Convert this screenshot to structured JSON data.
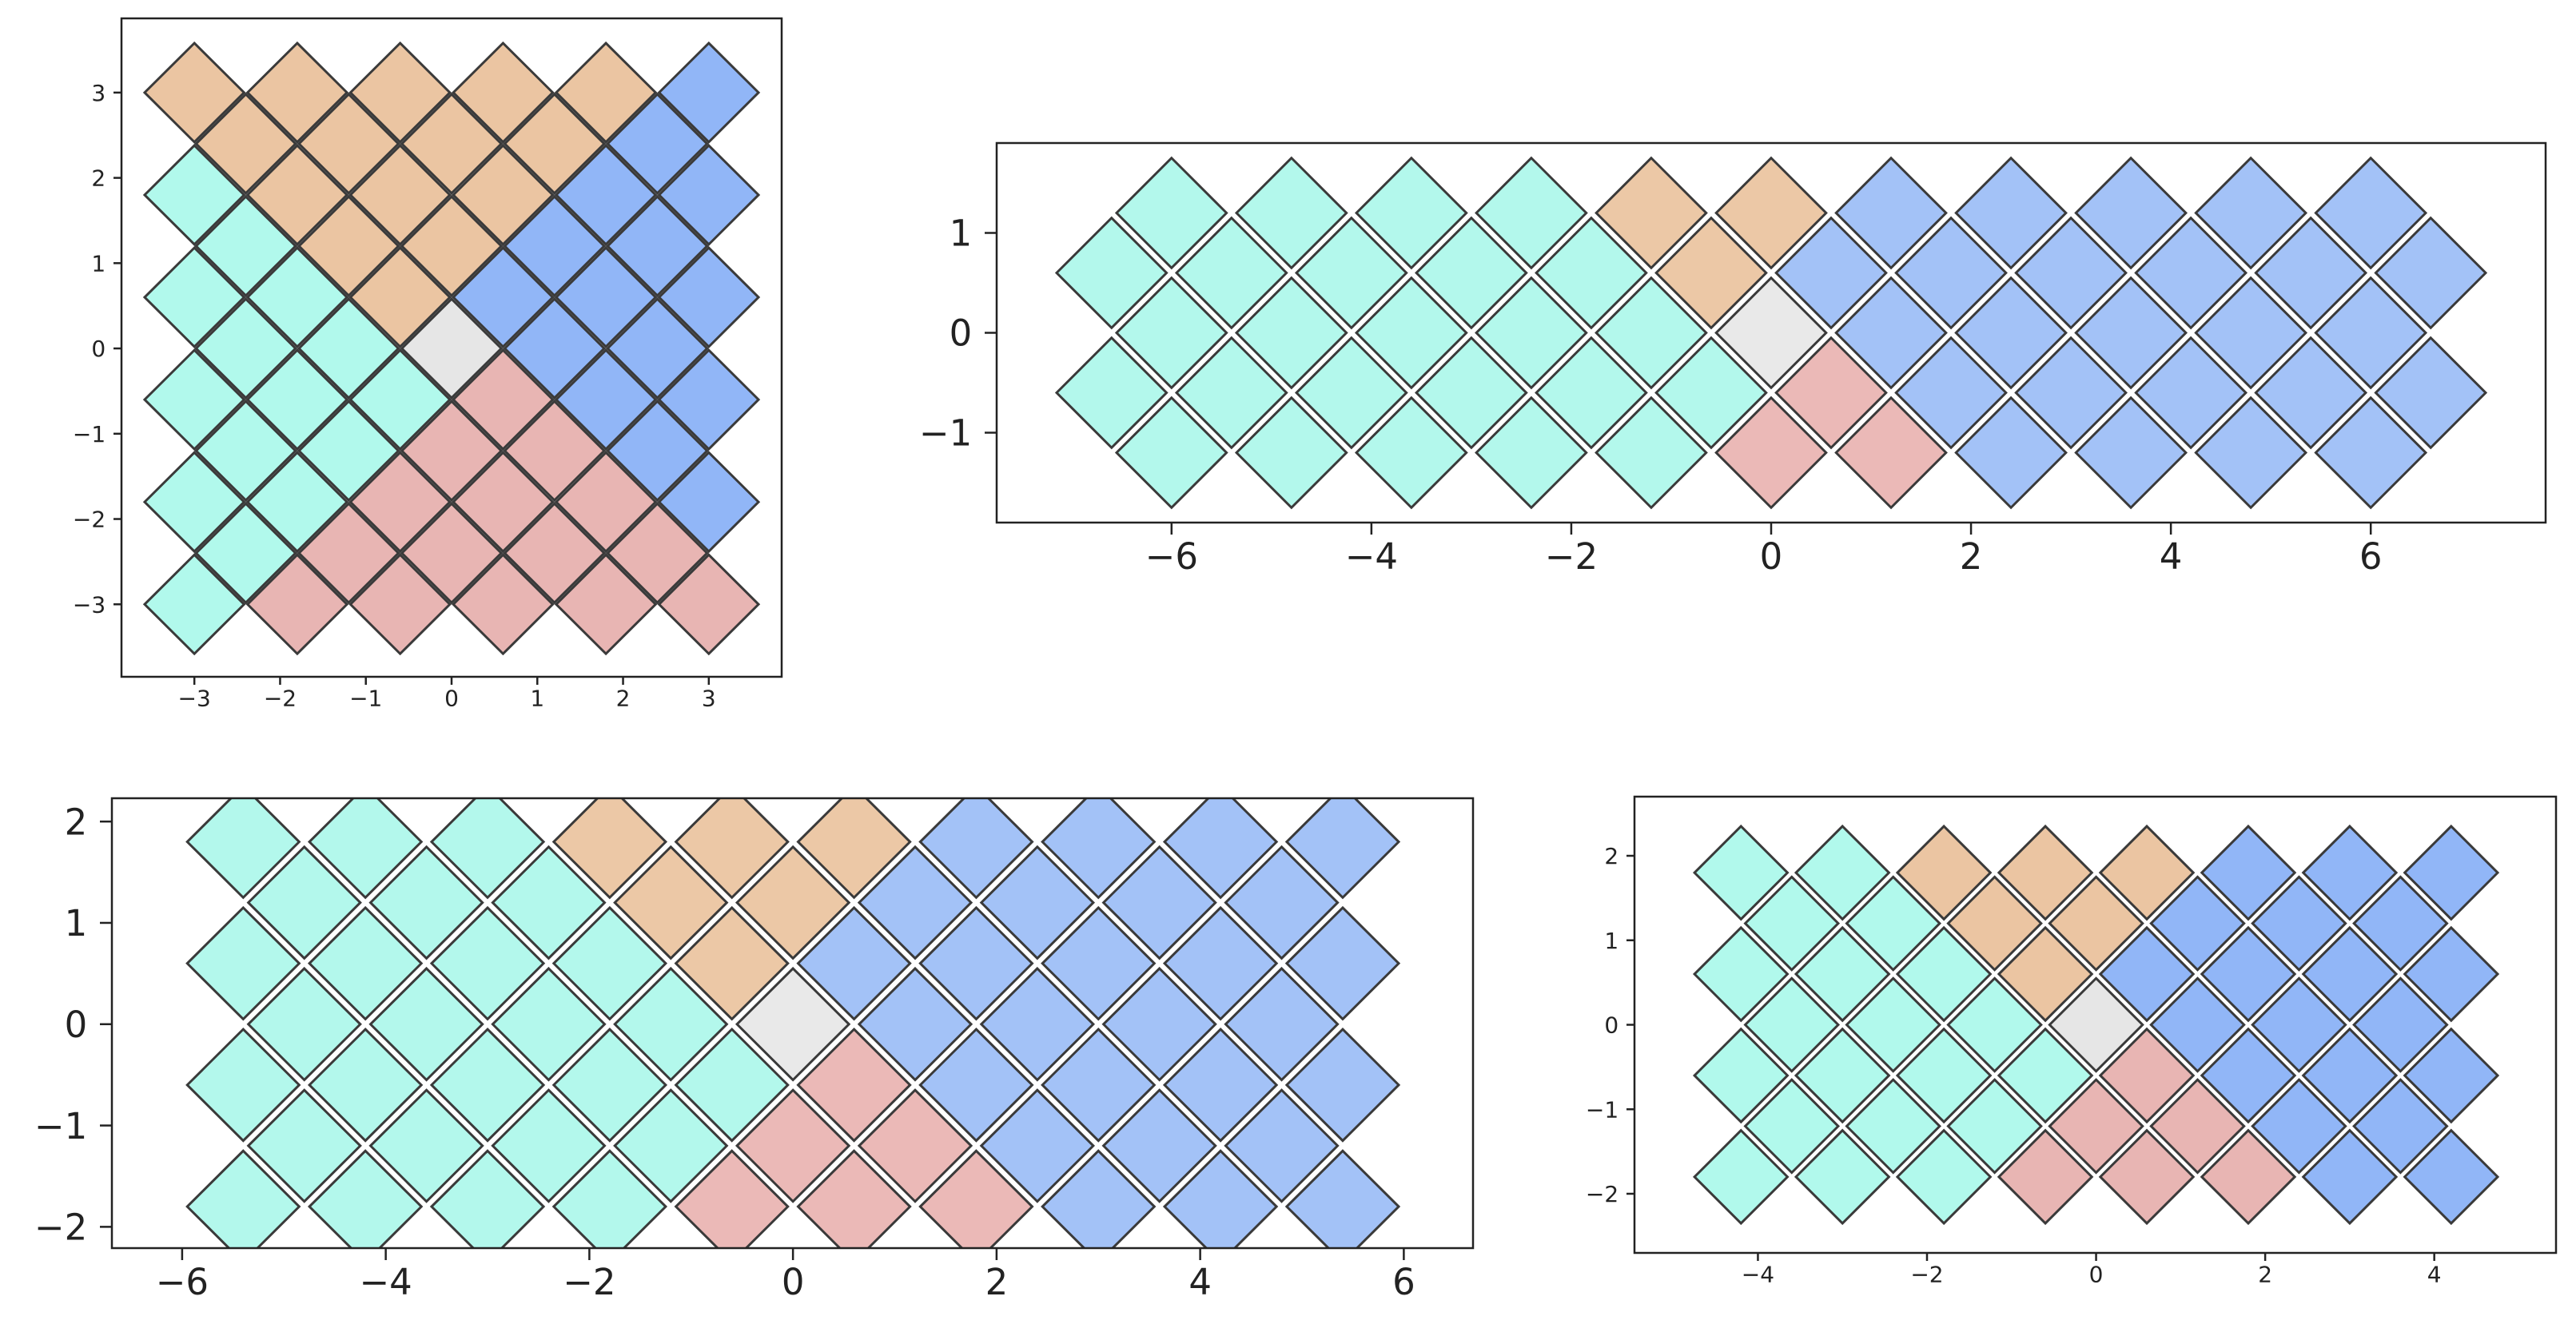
{
  "chart_data": [
    {
      "type": "scatter",
      "marker": "diamond",
      "marker_size": 0.58,
      "xlim": [
        -3.85,
        3.85
      ],
      "ylim": [
        -3.85,
        3.87
      ],
      "xticks": [
        {
          "value": -3,
          "label": "−3"
        },
        {
          "value": -2,
          "label": "−2"
        },
        {
          "value": -1,
          "label": "−1"
        },
        0,
        1,
        2,
        3
      ],
      "yticks": [
        {
          "value": -3,
          "label": "−3"
        },
        {
          "value": -2,
          "label": "−2"
        },
        {
          "value": -1,
          "label": "−1"
        },
        0,
        1,
        2,
        3
      ],
      "series": [
        {
          "color": "#ebc5a2",
          "x": [
            -3,
            -1.8,
            -0.6,
            0.6,
            1.8,
            -2.4,
            -1.2,
            0,
            1.2,
            -1.8,
            -0.6,
            0.6,
            -1.2,
            0,
            -0.6
          ],
          "values": [
            3,
            3,
            3,
            3,
            3,
            2.4,
            2.4,
            2.4,
            2.4,
            1.8,
            1.8,
            1.8,
            1.2,
            1.2,
            0.6
          ]
        },
        {
          "color": "#91b6f7",
          "x": [
            3,
            2.4,
            1.8,
            3,
            1.2,
            2.4,
            0.6,
            1.8,
            3,
            1.2,
            2.4,
            1.8,
            3,
            2.4,
            3
          ],
          "values": [
            3,
            2.4,
            1.8,
            1.8,
            1.2,
            1.2,
            0.6,
            0.6,
            0.6,
            0,
            0,
            -0.6,
            -0.6,
            -1.2,
            -1.8
          ]
        },
        {
          "color": "#e8b5b3",
          "x": [
            0.6,
            0,
            1.2,
            -0.6,
            0.6,
            1.8,
            -1.2,
            0,
            1.2,
            2.4,
            -1.8,
            -0.6,
            0.6,
            1.8,
            3
          ],
          "values": [
            -0.6,
            -1.2,
            -1.2,
            -1.8,
            -1.8,
            -1.8,
            -2.4,
            -2.4,
            -2.4,
            -2.4,
            -3,
            -3,
            -3,
            -3,
            -3
          ]
        },
        {
          "color": "#b1f9ec",
          "x": [
            -3,
            -2.4,
            -3,
            -1.8,
            -2.4,
            -1.2,
            -3,
            -1.8,
            -0.6,
            -2.4,
            -1.2,
            -3,
            -1.8,
            -2.4,
            -3
          ],
          "values": [
            1.8,
            1.2,
            0.6,
            0.6,
            0,
            0,
            -0.6,
            -0.6,
            -0.6,
            -1.2,
            -1.2,
            -1.8,
            -1.8,
            -2.4,
            -3
          ]
        },
        {
          "color": "#e6e6e6",
          "x": [
            0
          ],
          "values": [
            0
          ]
        }
      ]
    },
    {
      "type": "scatter",
      "marker": "diamond",
      "marker_size": 0.55,
      "xlim": [
        -7.75,
        7.75
      ],
      "ylim": [
        -1.9,
        1.9
      ],
      "xticks": [
        {
          "value": -6,
          "label": "−6"
        },
        {
          "value": -4,
          "label": "−4"
        },
        {
          "value": -2,
          "label": "−2"
        },
        0,
        2,
        4,
        6
      ],
      "yticks": [
        {
          "value": -1,
          "label": "−1"
        },
        0,
        1
      ],
      "series": [
        {
          "color": "#ecc8a6",
          "x": [
            -1.2,
            0,
            -0.6
          ],
          "values": [
            1.2,
            1.2,
            0.6
          ]
        },
        {
          "color": "#a3c2f7",
          "x": [
            1.2,
            2.4,
            3.6,
            4.8,
            6,
            0.6,
            1.8,
            3,
            4.2,
            5.4,
            6.6,
            1.2,
            2.4,
            3.6,
            4.8,
            6,
            1.8,
            3,
            4.2,
            5.4,
            6.6,
            2.4,
            3.6,
            4.8,
            6
          ],
          "values": [
            1.2,
            1.2,
            1.2,
            1.2,
            1.2,
            0.6,
            0.6,
            0.6,
            0.6,
            0.6,
            0.6,
            0,
            0,
            0,
            0,
            0,
            -0.6,
            -0.6,
            -0.6,
            -0.6,
            -0.6,
            -1.2,
            -1.2,
            -1.2,
            -1.2
          ]
        },
        {
          "color": "#ebb9b7",
          "x": [
            0.6,
            0,
            1.2
          ],
          "values": [
            -0.6,
            -1.2,
            -1.2
          ]
        },
        {
          "color": "#b3f8ec",
          "x": [
            -2.4,
            -3.6,
            -4.8,
            -6,
            -1.8,
            -3,
            -4.2,
            -5.4,
            -6.6,
            -1.2,
            -2.4,
            -3.6,
            -4.8,
            -6,
            -0.6,
            -1.8,
            -3,
            -4.2,
            -5.4,
            -6.6,
            -1.2,
            -2.4,
            -3.6,
            -4.8,
            -6
          ],
          "values": [
            1.2,
            1.2,
            1.2,
            1.2,
            0.6,
            0.6,
            0.6,
            0.6,
            0.6,
            0,
            0,
            0,
            0,
            0,
            -0.6,
            -0.6,
            -0.6,
            -0.6,
            -0.6,
            -0.6,
            -1.2,
            -1.2,
            -1.2,
            -1.2,
            -1.2
          ]
        },
        {
          "color": "#e9e9e9",
          "x": [
            0
          ],
          "values": [
            0
          ]
        }
      ]
    },
    {
      "type": "scatter",
      "marker": "diamond",
      "marker_size": 0.55,
      "xlim": [
        -6.69,
        6.68
      ],
      "ylim": [
        -2.21,
        2.23
      ],
      "xticks": [
        {
          "value": -6,
          "label": "−6"
        },
        {
          "value": -4,
          "label": "−4"
        },
        {
          "value": -2,
          "label": "−2"
        },
        0,
        2,
        4,
        6
      ],
      "yticks": [
        {
          "value": -2,
          "label": "−2"
        },
        {
          "value": -1,
          "label": "−1"
        },
        0,
        1,
        2
      ],
      "series": [
        {
          "color": "#ecc8a6",
          "x": [
            -1.8,
            -0.6,
            0.6,
            -1.2,
            0,
            -0.6
          ],
          "values": [
            1.8,
            1.8,
            1.8,
            1.2,
            1.2,
            0.6
          ]
        },
        {
          "color": "#a3c2f7",
          "x": [
            1.8,
            3,
            4.2,
            5.4,
            1.2,
            2.4,
            3.6,
            4.8,
            0.6,
            1.8,
            3,
            4.2,
            5.4,
            1.2,
            2.4,
            3.6,
            4.8,
            1.8,
            3,
            4.2,
            5.4,
            2.4,
            3.6,
            4.8,
            3,
            4.2,
            5.4
          ],
          "values": [
            1.8,
            1.8,
            1.8,
            1.8,
            1.2,
            1.2,
            1.2,
            1.2,
            0.6,
            0.6,
            0.6,
            0.6,
            0.6,
            0,
            0,
            0,
            0,
            -0.6,
            -0.6,
            -0.6,
            -0.6,
            -1.2,
            -1.2,
            -1.2,
            -1.8,
            -1.8,
            -1.8
          ]
        },
        {
          "color": "#ebb9b7",
          "x": [
            0.6,
            0,
            1.2,
            -0.6,
            0.6,
            1.8
          ],
          "values": [
            -0.6,
            -1.2,
            -1.2,
            -1.8,
            -1.8,
            -1.8
          ]
        },
        {
          "color": "#b3f8ec",
          "x": [
            -3,
            -4.2,
            -5.4,
            -2.4,
            -3.6,
            -4.8,
            -1.8,
            -3,
            -4.2,
            -5.4,
            -1.2,
            -2.4,
            -3.6,
            -4.8,
            -0.6,
            -1.8,
            -3,
            -4.2,
            -5.4,
            -1.2,
            -2.4,
            -3.6,
            -4.8,
            -1.8,
            -3,
            -4.2,
            -5.4
          ],
          "values": [
            1.8,
            1.8,
            1.8,
            1.2,
            1.2,
            1.2,
            0.6,
            0.6,
            0.6,
            0.6,
            0,
            0,
            0,
            0,
            -0.6,
            -0.6,
            -0.6,
            -0.6,
            -0.6,
            -1.2,
            -1.2,
            -1.2,
            -1.2,
            -1.8,
            -1.8,
            -1.8,
            -1.8
          ]
        },
        {
          "color": "#e9e9e9",
          "x": [
            0
          ],
          "values": [
            0
          ]
        }
      ]
    },
    {
      "type": "scatter",
      "marker": "diamond",
      "marker_size": 0.55,
      "xlim": [
        -5.46,
        5.44
      ],
      "ylim": [
        -2.7,
        2.7
      ],
      "xticks": [
        {
          "value": -4,
          "label": "−4"
        },
        {
          "value": -2,
          "label": "−2"
        },
        0,
        2,
        4
      ],
      "yticks": [
        {
          "value": -2,
          "label": "−2"
        },
        {
          "value": -1,
          "label": "−1"
        },
        0,
        1,
        2
      ],
      "series": [
        {
          "color": "#ebc5a2",
          "x": [
            -1.8,
            -0.6,
            0.6,
            -1.2,
            0,
            -0.6
          ],
          "values": [
            1.8,
            1.8,
            1.8,
            1.2,
            1.2,
            0.6
          ]
        },
        {
          "color": "#91b6f7",
          "x": [
            1.8,
            3,
            4.2,
            1.2,
            2.4,
            3.6,
            0.6,
            1.8,
            3,
            4.2,
            1.2,
            2.4,
            3.6,
            1.8,
            3,
            4.2,
            2.4,
            3.6,
            3,
            4.2
          ],
          "values": [
            1.8,
            1.8,
            1.8,
            1.2,
            1.2,
            1.2,
            0.6,
            0.6,
            0.6,
            0.6,
            0,
            0,
            0,
            -0.6,
            -0.6,
            -0.6,
            -1.2,
            -1.2,
            -1.8,
            -1.8
          ]
        },
        {
          "color": "#e8b5b3",
          "x": [
            0.6,
            0,
            1.2,
            -0.6,
            0.6,
            1.8
          ],
          "values": [
            -0.6,
            -1.2,
            -1.2,
            -1.8,
            -1.8,
            -1.8
          ]
        },
        {
          "color": "#b1f9ec",
          "x": [
            -3,
            -4.2,
            -2.4,
            -3.6,
            -1.8,
            -3,
            -4.2,
            -1.2,
            -2.4,
            -3.6,
            -0.6,
            -1.8,
            -3,
            -4.2,
            -1.2,
            -2.4,
            -3.6,
            -1.8,
            -3,
            -4.2
          ],
          "values": [
            1.8,
            1.8,
            1.2,
            1.2,
            0.6,
            0.6,
            0.6,
            0,
            0,
            0,
            -0.6,
            -0.6,
            -0.6,
            -0.6,
            -1.2,
            -1.2,
            -1.2,
            -1.8,
            -1.8,
            -1.8
          ]
        },
        {
          "color": "#e6e6e6",
          "x": [
            0
          ],
          "values": [
            0
          ]
        }
      ]
    }
  ]
}
